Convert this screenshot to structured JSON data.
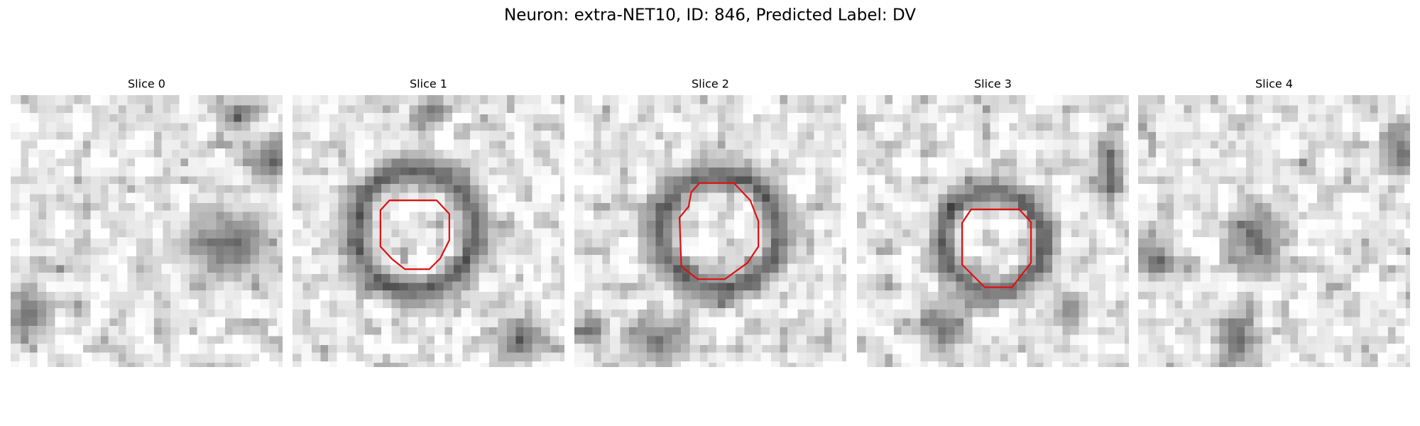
{
  "title": "Neuron: extra-NET10, ID: 846, Predicted Label: DV",
  "panels": [
    {
      "label": "Slice 0"
    },
    {
      "label": "Slice 1"
    },
    {
      "label": "Slice 2"
    },
    {
      "label": "Slice 3"
    },
    {
      "label": "Slice 4"
    }
  ]
}
